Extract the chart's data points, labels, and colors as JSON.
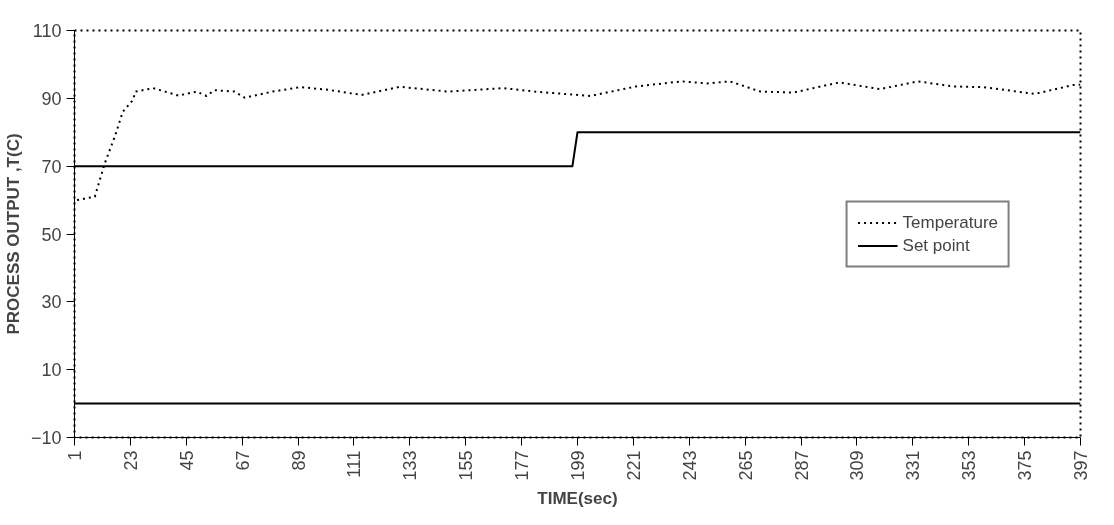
{
  "chart_data": {
    "type": "line",
    "xlabel": "TIME(sec)",
    "ylabel": "PROCESS OUTPUT ,T(C)",
    "xlim": [
      1,
      397
    ],
    "ylim": [
      -10,
      110
    ],
    "xticks": [
      1,
      23,
      45,
      67,
      89,
      111,
      133,
      155,
      177,
      199,
      221,
      243,
      265,
      287,
      309,
      331,
      353,
      375,
      397
    ],
    "yticks": [
      -10,
      10,
      30,
      50,
      70,
      90,
      110
    ],
    "grid": false,
    "legend": "right",
    "ref_lines": [
      {
        "axis": "y",
        "value": 0,
        "color": "#000000",
        "line_style": "solid"
      }
    ],
    "series": [
      {
        "name": "Temperature",
        "color": "#000000",
        "line_style": "dotted",
        "x": [
          2,
          9,
          13,
          17,
          20,
          24,
          25,
          32,
          42,
          49,
          53,
          56,
          64,
          68,
          79,
          90,
          101,
          114,
          129,
          148,
          170,
          182,
          204,
          222,
          240,
          250,
          259,
          271,
          284,
          302,
          318,
          333,
          347,
          359,
          379,
          394,
          397
        ],
        "values": [
          60,
          61,
          71,
          79,
          86,
          89.5,
          92,
          93,
          90.8,
          92,
          90.7,
          92.4,
          92,
          90.2,
          92,
          93.3,
          92.5,
          91,
          93.4,
          92,
          93,
          92,
          90.7,
          93.5,
          95,
          94.4,
          95,
          92,
          91.7,
          94.7,
          92.7,
          95,
          93.5,
          93.3,
          91.3,
          93.9,
          94
        ]
      },
      {
        "name": "Set point",
        "color": "#000000",
        "line_style": "solid",
        "x": [
          1,
          197,
          199,
          397
        ],
        "values": [
          70,
          70,
          80,
          80
        ]
      }
    ]
  }
}
